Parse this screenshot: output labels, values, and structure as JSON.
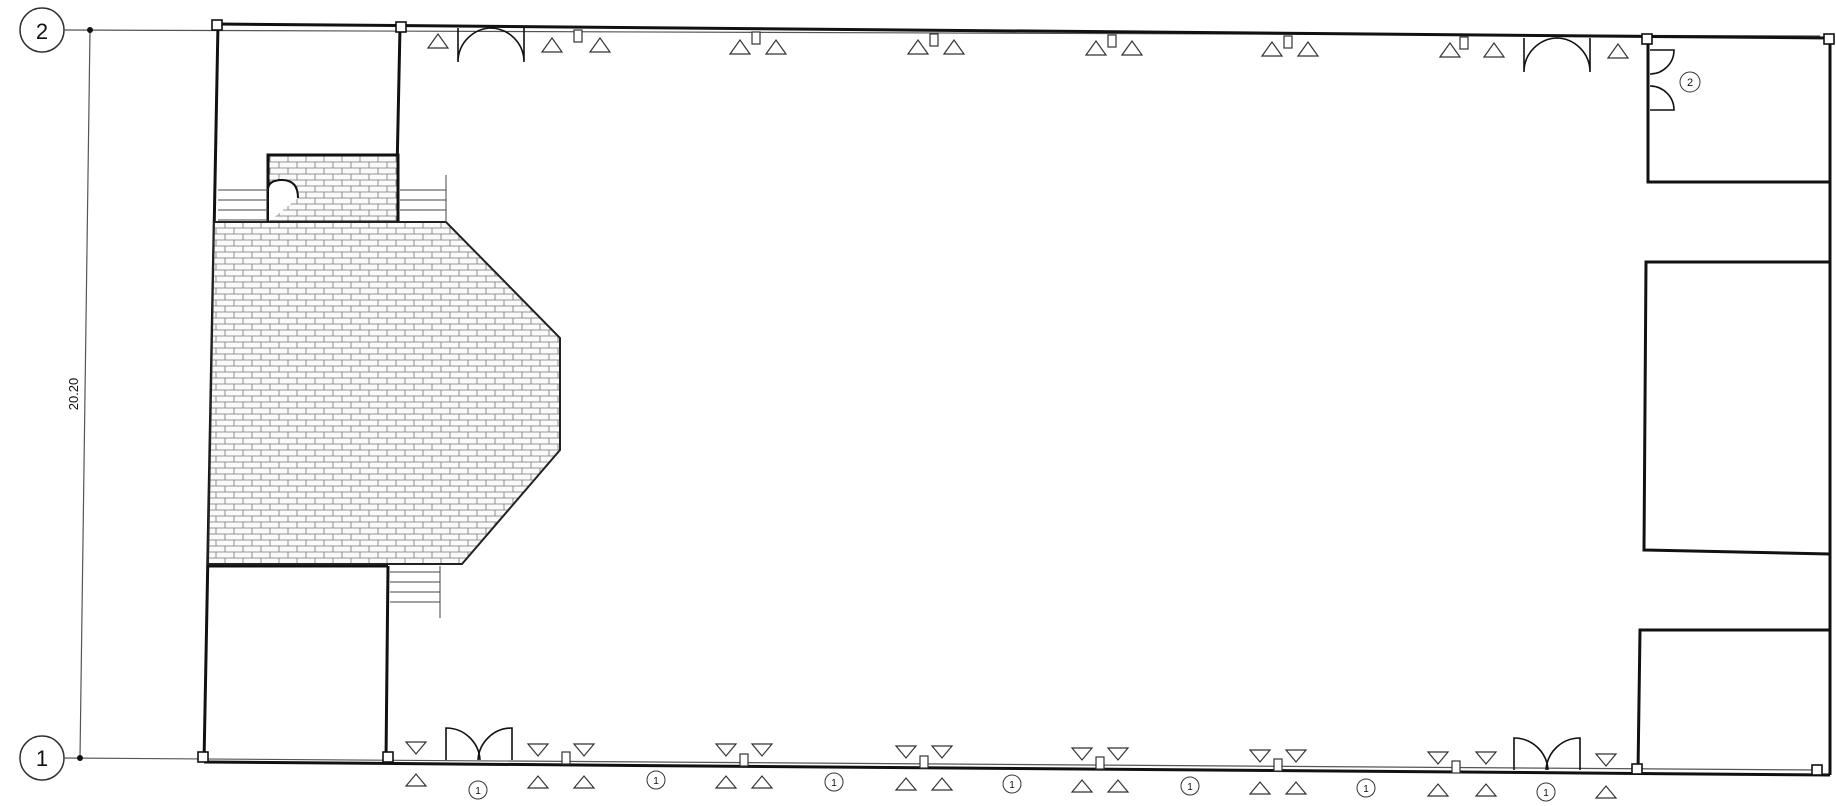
{
  "grid": {
    "top_axis_label": "2",
    "bottom_axis_label": "1"
  },
  "dimension": {
    "overall_depth": "20.20"
  },
  "markers": {
    "window_type": "1",
    "door_type": "2"
  }
}
